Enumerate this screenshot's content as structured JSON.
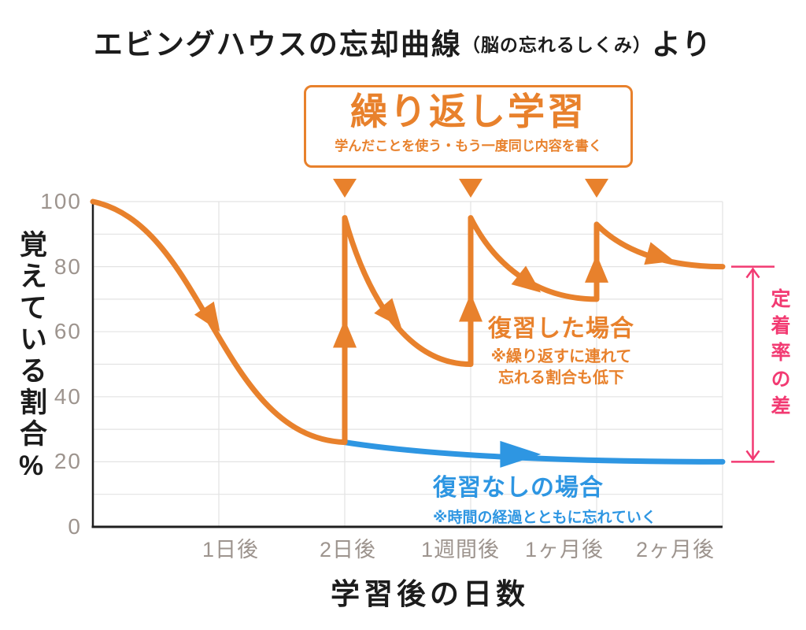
{
  "title": {
    "main": "エビングハウスの忘却曲線",
    "paren": "（脳の忘れるしくみ）",
    "suffix": "より"
  },
  "repeat_box": {
    "title": "繰り返し学習",
    "subtitle": "学んだことを使う・もう一度同じ内容を書く"
  },
  "chart_data": {
    "type": "line",
    "title": "エビングハウスの忘却曲線（脳の忘れるしくみ）より",
    "xlabel": "学習後の日数",
    "ylabel": "覚えている割合%",
    "ylim": [
      0,
      100
    ],
    "y_ticks": [
      100,
      80,
      60,
      40,
      20,
      0
    ],
    "x_ticks": [
      "1日後",
      "2日後",
      "1週間後",
      "1ヶ月後",
      "2ヶ月後"
    ],
    "grid": true,
    "grid_color": "#E3E3E3",
    "axis_color": "#1F1F1F",
    "tick_color": "#9D948E",
    "series": [
      {
        "name": "復習した場合",
        "color": "#E8812C",
        "note_lines": [
          "※繰り返すに連れて",
          "忘れる割合も低下"
        ],
        "points": [
          {
            "x": 0,
            "y": 100
          },
          {
            "x": 2,
            "y": 26,
            "shape": "s"
          },
          {
            "x": 2,
            "y": 95,
            "shape": "spike"
          },
          {
            "x": 3,
            "y": 50,
            "shape": "exp"
          },
          {
            "x": 3,
            "y": 95,
            "shape": "spike"
          },
          {
            "x": 4,
            "y": 70,
            "shape": "exp"
          },
          {
            "x": 4,
            "y": 93,
            "shape": "spike"
          },
          {
            "x": 5,
            "y": 80,
            "shape": "exp"
          }
        ]
      },
      {
        "name": "復習なしの場合",
        "color": "#2E96E2",
        "note_lines": [
          "※時間の経過とともに忘れていく"
        ],
        "points": [
          {
            "x": 2,
            "y": 26
          },
          {
            "x": 5,
            "y": 20,
            "shape": "exp"
          }
        ]
      }
    ],
    "arrows": [
      {
        "u": 0.94,
        "v": 64,
        "angle": 56,
        "color": "#E8812C"
      },
      {
        "u": 2,
        "v": 59,
        "angle": -90,
        "color": "#E8812C"
      },
      {
        "u": 2.37,
        "v": 65,
        "angle": 50,
        "color": "#E8812C"
      },
      {
        "u": 3,
        "v": 67,
        "angle": -90,
        "color": "#E8812C"
      },
      {
        "u": 3.46,
        "v": 75,
        "angle": 38,
        "color": "#E8812C"
      },
      {
        "u": 4,
        "v": 79,
        "angle": -90,
        "color": "#E8812C"
      },
      {
        "u": 4.5,
        "v": 83,
        "angle": 16,
        "color": "#E8812C"
      },
      {
        "u": 3.38,
        "v": 22.3,
        "angle": 0,
        "color": "#2E96E2",
        "L": 52,
        "W": 34
      }
    ],
    "review_marker_x": [
      2,
      3,
      4
    ],
    "gap_annotation": {
      "label": "定着率の差",
      "from_y": 80,
      "to_y": 20,
      "color": "#F23A72"
    }
  }
}
